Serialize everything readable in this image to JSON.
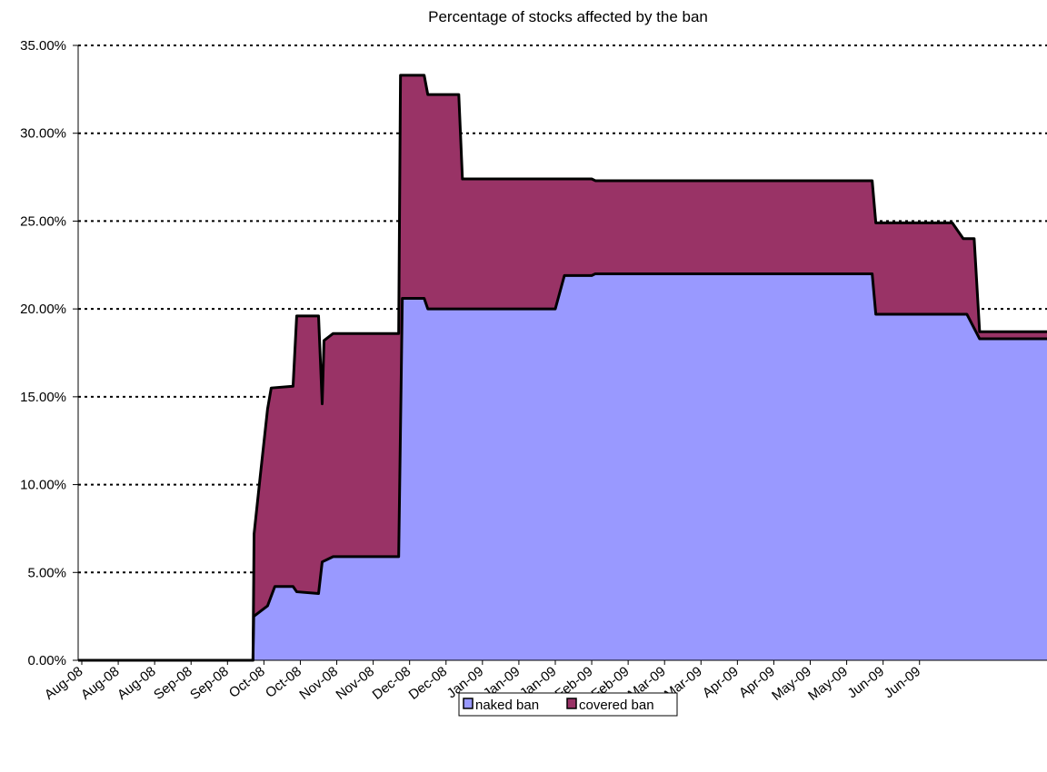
{
  "chart_data": {
    "type": "area",
    "stacked": true,
    "title": "Percentage of stocks affected by the ban",
    "xlabel": "",
    "ylabel": "",
    "ylim": [
      0,
      35
    ],
    "y_tick_labels": [
      "0.00%",
      "5.00%",
      "10.00%",
      "15.00%",
      "20.00%",
      "25.00%",
      "30.00%",
      "35.00%"
    ],
    "x_tick_labels": [
      "Aug-08",
      "Aug-08",
      "Aug-08",
      "Sep-08",
      "Sep-08",
      "Oct-08",
      "Oct-08",
      "Nov-08",
      "Nov-08",
      "Dec-08",
      "Dec-08",
      "Jan-09",
      "Jan-09",
      "Jan-09",
      "Feb-09",
      "Feb-09",
      "Mar-09",
      "Mar-09",
      "Apr-09",
      "Apr-09",
      "May-09",
      "May-09",
      "Jun-09",
      "Jun-09"
    ],
    "x_range": [
      0,
      26.6
    ],
    "grid": "horizontal dotted",
    "legend_position": "bottom",
    "series": [
      {
        "name": "naked ban",
        "color": "#9999ff",
        "points": [
          [
            0,
            0
          ],
          [
            4.8,
            0
          ],
          [
            4.82,
            2.5
          ],
          [
            5.2,
            3.1
          ],
          [
            5.4,
            4.2
          ],
          [
            5.9,
            4.2
          ],
          [
            6.0,
            3.9
          ],
          [
            6.6,
            3.8
          ],
          [
            6.7,
            5.6
          ],
          [
            7.0,
            5.9
          ],
          [
            8.8,
            5.9
          ],
          [
            8.9,
            20.6
          ],
          [
            9.5,
            20.6
          ],
          [
            9.6,
            20.0
          ],
          [
            13.1,
            20.0
          ],
          [
            13.35,
            21.9
          ],
          [
            14.1,
            21.9
          ],
          [
            14.2,
            22.0
          ],
          [
            21.8,
            22.0
          ],
          [
            21.9,
            19.7
          ],
          [
            24.4,
            19.7
          ],
          [
            24.75,
            18.3
          ],
          [
            26.6,
            18.3
          ]
        ]
      },
      {
        "name": "covered ban",
        "color": "#993366",
        "points": [
          [
            0,
            0
          ],
          [
            4.8,
            0
          ],
          [
            4.83,
            7.2
          ],
          [
            5.0,
            10.5
          ],
          [
            5.2,
            14.3
          ],
          [
            5.3,
            15.5
          ],
          [
            5.9,
            15.6
          ],
          [
            6.0,
            19.6
          ],
          [
            6.6,
            19.6
          ],
          [
            6.7,
            14.6
          ],
          [
            6.75,
            18.2
          ],
          [
            7.0,
            18.6
          ],
          [
            8.8,
            18.6
          ],
          [
            8.85,
            33.3
          ],
          [
            9.5,
            33.3
          ],
          [
            9.6,
            32.2
          ],
          [
            10.45,
            32.2
          ],
          [
            10.55,
            27.4
          ],
          [
            14.1,
            27.4
          ],
          [
            14.2,
            27.3
          ],
          [
            21.8,
            27.3
          ],
          [
            21.9,
            24.9
          ],
          [
            24.0,
            24.9
          ],
          [
            24.3,
            24.0
          ],
          [
            24.6,
            24.0
          ],
          [
            24.75,
            18.7
          ],
          [
            26.6,
            18.7
          ]
        ]
      }
    ]
  }
}
